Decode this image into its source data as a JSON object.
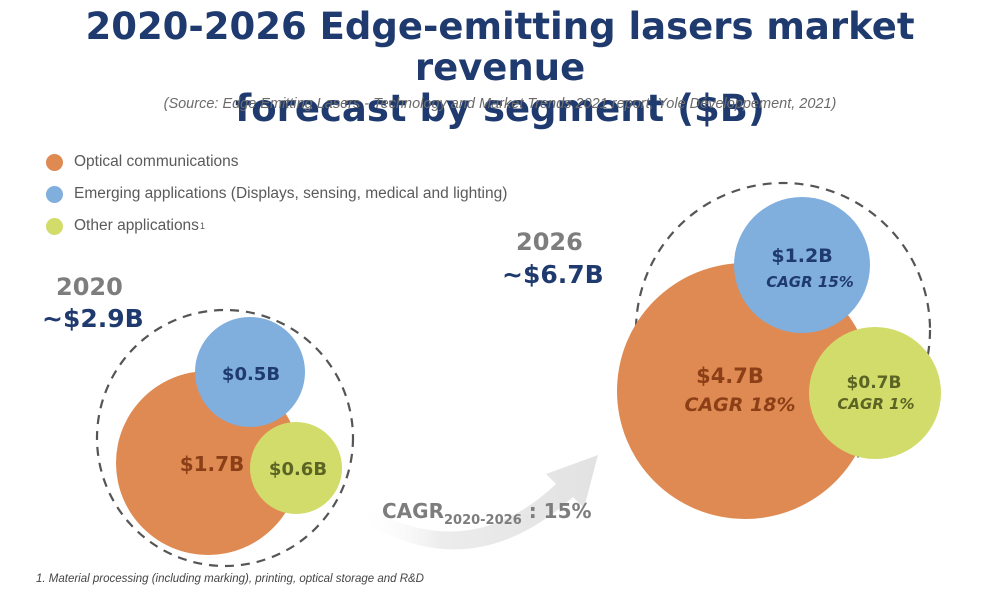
{
  "title_line1": "2020-2026 Edge-emitting lasers market revenue",
  "title_line2": "forecast by segment ($B)",
  "source": "(Source: Edge Emitting Lasers - Technology and Market Trends 2021 report, Yole Développement, 2021)",
  "legend": [
    {
      "label": "Optical communications",
      "color": "#df8a52"
    },
    {
      "label": "Emerging applications (Displays, sensing, medical and lighting)",
      "color": "#80aedd"
    },
    {
      "label": "Other applications",
      "sup": "1",
      "color": "#d2dc6a"
    }
  ],
  "colors": {
    "optical": "#df8a52",
    "emerging": "#80aedd",
    "other": "#d2dc6a",
    "optical_text": "#8c3f17",
    "emerging_text": "#1f3a6e",
    "other_text": "#5c6424",
    "dashed": "#555555",
    "arrow": "#e6e6e6"
  },
  "chart_data": {
    "type": "bubble",
    "title": "2020-2026 Edge-emitting lasers market revenue forecast by segment ($B)",
    "unit": "$B",
    "years": [
      {
        "year": "2020",
        "total_label": "~$2.9B",
        "total": 2.9,
        "segments": [
          {
            "segment": "Optical communications",
            "value": 1.7,
            "label": "$1.7B"
          },
          {
            "segment": "Emerging applications (Displays, sensing, medical and lighting)",
            "value": 0.5,
            "label": "$0.5B"
          },
          {
            "segment": "Other applications",
            "value": 0.6,
            "label": "$0.6B"
          }
        ]
      },
      {
        "year": "2026",
        "total_label": "~$6.7B",
        "total": 6.7,
        "segments": [
          {
            "segment": "Optical communications",
            "value": 4.7,
            "label": "$4.7B",
            "cagr": "CAGR 18%"
          },
          {
            "segment": "Emerging applications (Displays, sensing, medical and lighting)",
            "value": 1.2,
            "label": "$1.2B",
            "cagr": "CAGR 15%"
          },
          {
            "segment": "Other applications",
            "value": 0.7,
            "label": "$0.7B",
            "cagr": "CAGR 1%"
          }
        ]
      }
    ],
    "overall_cagr": {
      "prefix": "CAGR",
      "subscript": "2020-2026",
      "suffix": " : 15%"
    }
  },
  "footnote": "1. Material processing (including marking), printing, optical storage and R&D"
}
